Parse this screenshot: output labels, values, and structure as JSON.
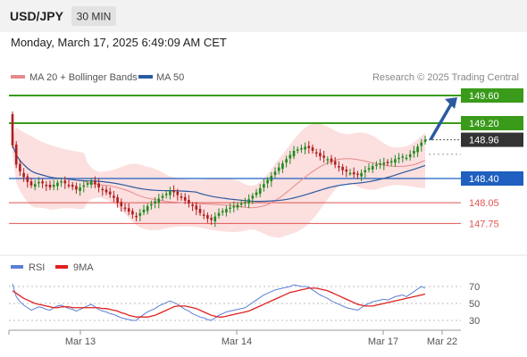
{
  "header": {
    "symbol": "USD/JPY",
    "timeframe": "30 MIN",
    "datetime": "Monday, March 17, 2025 6:49:09 AM CET"
  },
  "colors": {
    "bull": "#1e8a1e",
    "bear": "#b01e1e",
    "ma20": "#e68a8a",
    "bollinger_fill": "#fcd9d9",
    "ma50": "#2a5aa0",
    "resistance": "#3a9a1a",
    "pivot": "#1f5fbf",
    "support": "#e05555",
    "last_price_bg": "#333333",
    "target_arrow": "#2a5aa0",
    "rsi": "#5b7fd6",
    "rsi_ma": "#e02020"
  },
  "chart_data": [
    {
      "type": "candlestick",
      "legend": [
        {
          "label": "MA 20 + Bollinger Bands",
          "color": "#e68a8a"
        },
        {
          "label": "MA 50",
          "color": "#2a5aa0"
        }
      ],
      "credit": "Research © 2025 Trading Central",
      "x_ticks": [
        "Mar 13",
        "Mar 14",
        "Mar 17",
        "Mar 22"
      ],
      "ylim": [
        147.6,
        149.7
      ],
      "price_levels": [
        {
          "label": "149.60",
          "value": 149.6,
          "kind": "resistance"
        },
        {
          "label": "149.20",
          "value": 149.2,
          "kind": "resistance"
        },
        {
          "label": "148.96",
          "value": 148.96,
          "kind": "last"
        },
        {
          "label": "148.40",
          "value": 148.4,
          "kind": "pivot"
        },
        {
          "label": "148.05",
          "value": 148.05,
          "kind": "support"
        },
        {
          "label": "147.75",
          "value": 147.75,
          "kind": "support"
        }
      ],
      "target": {
        "from": 148.96,
        "to": 149.6
      },
      "closes": [
        148.88,
        148.6,
        148.5,
        148.42,
        148.35,
        148.3,
        148.32,
        148.35,
        148.33,
        148.3,
        148.27,
        148.31,
        148.34,
        148.36,
        148.33,
        148.3,
        148.28,
        148.24,
        148.27,
        148.3,
        148.33,
        148.36,
        148.32,
        148.27,
        148.23,
        148.2,
        148.17,
        148.12,
        148.05,
        148.0,
        147.96,
        147.92,
        147.88,
        147.85,
        147.9,
        147.95,
        148.0,
        148.03,
        148.07,
        148.11,
        148.15,
        148.18,
        148.22,
        148.2,
        148.16,
        148.12,
        148.08,
        148.04,
        148.0,
        147.95,
        147.9,
        147.86,
        147.82,
        147.8,
        147.85,
        147.9,
        147.93,
        147.96,
        147.98,
        148.0,
        148.02,
        148.04,
        148.06,
        148.1,
        148.15,
        148.2,
        148.26,
        148.32,
        148.38,
        148.44,
        148.5,
        148.56,
        148.62,
        148.68,
        148.74,
        148.8,
        148.82,
        148.84,
        148.86,
        148.84,
        148.8,
        148.76,
        148.72,
        148.7,
        148.68,
        148.64,
        148.6,
        148.56,
        148.52,
        148.5,
        148.48,
        148.46,
        148.45,
        148.48,
        148.52,
        148.55,
        148.58,
        148.6,
        148.62,
        148.63,
        148.62,
        148.65,
        148.68,
        148.7,
        148.72,
        148.7,
        148.75,
        148.8,
        148.86,
        148.92,
        148.96
      ]
    },
    {
      "type": "line",
      "legend": [
        {
          "label": "RSI",
          "color": "#5b7fd6"
        },
        {
          "label": "9MA",
          "color": "#e02020"
        }
      ],
      "y_ticks": [
        "70",
        "50",
        "30"
      ],
      "ylim": [
        20,
        80
      ],
      "series": [
        {
          "name": "RSI",
          "values": [
            73,
            58,
            52,
            48,
            45,
            42,
            44,
            46,
            45,
            43,
            42,
            45,
            47,
            48,
            46,
            44,
            43,
            41,
            43,
            45,
            47,
            49,
            46,
            43,
            41,
            40,
            38,
            37,
            35,
            33,
            32,
            31,
            30,
            30,
            34,
            37,
            40,
            42,
            44,
            47,
            49,
            51,
            53,
            51,
            49,
            46,
            43,
            41,
            38,
            36,
            34,
            33,
            31,
            30,
            33,
            36,
            38,
            40,
            41,
            42,
            43,
            44,
            45,
            48,
            51,
            54,
            57,
            60,
            62,
            64,
            66,
            67,
            68,
            69,
            70,
            72,
            71,
            70,
            70,
            69,
            66,
            63,
            60,
            58,
            56,
            53,
            51,
            49,
            47,
            45,
            44,
            43,
            42,
            45,
            48,
            50,
            52,
            53,
            54,
            55,
            54,
            56,
            58,
            59,
            60,
            58,
            61,
            64,
            67,
            70,
            68
          ]
        },
        {
          "name": "9MA",
          "values": [
            65,
            62,
            59,
            56,
            54,
            52,
            50,
            49,
            48,
            47,
            46,
            45,
            45,
            46,
            46,
            46,
            45,
            45,
            45,
            45,
            45,
            45,
            45,
            45,
            44,
            44,
            43,
            42,
            41,
            39,
            38,
            36,
            35,
            34,
            34,
            34,
            34,
            35,
            36,
            38,
            40,
            42,
            44,
            46,
            47,
            47,
            47,
            46,
            45,
            44,
            42,
            40,
            38,
            36,
            35,
            34,
            34,
            35,
            36,
            37,
            38,
            39,
            40,
            41,
            43,
            45,
            47,
            49,
            51,
            53,
            55,
            57,
            59,
            61,
            63,
            64,
            65,
            66,
            67,
            68,
            68,
            68,
            67,
            66,
            65,
            63,
            61,
            59,
            57,
            55,
            53,
            51,
            49,
            48,
            47,
            47,
            47,
            48,
            49,
            50,
            51,
            52,
            53,
            54,
            55,
            56,
            57,
            58,
            59,
            60,
            61
          ]
        }
      ]
    }
  ]
}
